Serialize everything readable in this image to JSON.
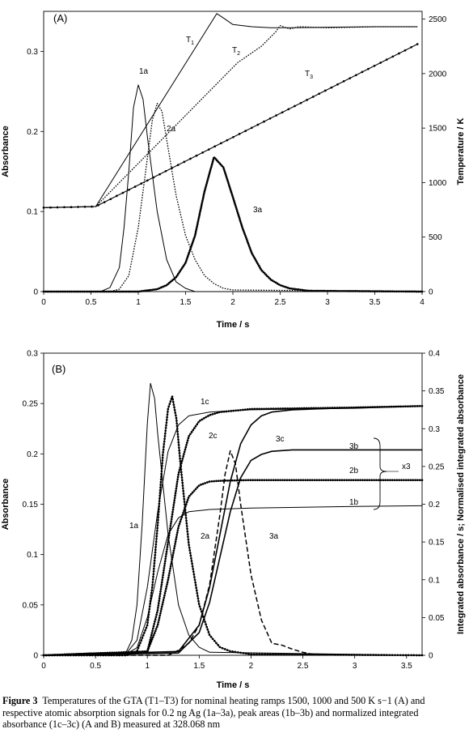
{
  "chart_data": [
    {
      "type": "line",
      "panel_label": "(A)",
      "xlabel": "Time / s",
      "ylabel_left": "Absorbance",
      "ylabel_right": "Temperature / K",
      "xlim": [
        0,
        4
      ],
      "ylim_left": [
        0,
        0.35
      ],
      "ylim_right": [
        0,
        2571
      ],
      "x_ticks": [
        0,
        0.5,
        1,
        1.5,
        2,
        2.5,
        3,
        3.5,
        4
      ],
      "x_tick_labels": [
        "0",
        "0.5",
        "1",
        "1.5",
        "2",
        "2.5",
        "3",
        "3.5",
        "4"
      ],
      "y_ticks_left": [
        0,
        0.1,
        0.2,
        0.3
      ],
      "y_tick_labels_left": [
        "0",
        "0.1",
        "0.2",
        "0.3"
      ],
      "y_ticks_right": [
        0,
        500,
        1000,
        1500,
        2000,
        2500
      ],
      "y_tick_labels_right": [
        "0",
        "500",
        "1000",
        "1500",
        "2000",
        "2500"
      ],
      "series": [
        {
          "label": "T1",
          "axis": "right",
          "style": "solid",
          "x": [
            0,
            0.55,
            1.83,
            1.9,
            2.0,
            2.2,
            2.4,
            2.6,
            3.0,
            3.5,
            3.95
          ],
          "y": [
            770,
            780,
            2550,
            2510,
            2450,
            2430,
            2420,
            2420,
            2425,
            2430,
            2430
          ]
        },
        {
          "label": "T2",
          "axis": "right",
          "style": "dotted",
          "x": [
            0,
            0.55,
            2.05,
            2.3,
            2.45,
            2.5,
            2.6,
            2.7,
            3.0,
            3.5,
            3.95
          ],
          "y": [
            770,
            780,
            2100,
            2250,
            2380,
            2440,
            2410,
            2430,
            2420,
            2430,
            2430
          ]
        },
        {
          "label": "T3",
          "axis": "right",
          "style": "markers",
          "x": [
            0,
            0.55,
            3.95
          ],
          "y": [
            770,
            780,
            2270
          ]
        },
        {
          "label": "1a",
          "axis": "left",
          "style": "solid",
          "x": [
            0,
            0.6,
            0.7,
            0.8,
            0.85,
            0.9,
            0.95,
            1.0,
            1.05,
            1.1,
            1.2,
            1.3,
            1.4,
            1.5,
            1.6,
            4.0
          ],
          "y": [
            0,
            0,
            0.005,
            0.03,
            0.08,
            0.15,
            0.23,
            0.258,
            0.24,
            0.19,
            0.1,
            0.04,
            0.012,
            0.004,
            0,
            0
          ]
        },
        {
          "label": "2a",
          "axis": "left",
          "style": "dotted",
          "x": [
            0,
            0.7,
            0.8,
            0.9,
            1.0,
            1.1,
            1.15,
            1.2,
            1.25,
            1.3,
            1.4,
            1.5,
            1.6,
            1.7,
            1.8,
            1.9,
            2.0,
            4.0
          ],
          "y": [
            0,
            0,
            0.003,
            0.02,
            0.08,
            0.17,
            0.215,
            0.235,
            0.225,
            0.19,
            0.12,
            0.07,
            0.04,
            0.02,
            0.01,
            0.004,
            0.002,
            0
          ]
        },
        {
          "label": "3a",
          "axis": "left",
          "style": "markers",
          "x": [
            0,
            1.0,
            1.2,
            1.3,
            1.4,
            1.5,
            1.6,
            1.7,
            1.8,
            1.9,
            2.0,
            2.1,
            2.2,
            2.3,
            2.4,
            2.5,
            2.6,
            2.8,
            4.0
          ],
          "y": [
            0,
            0,
            0.003,
            0.008,
            0.018,
            0.036,
            0.07,
            0.125,
            0.168,
            0.155,
            0.118,
            0.08,
            0.048,
            0.027,
            0.015,
            0.008,
            0.004,
            0.001,
            0
          ]
        }
      ],
      "annotations": [
        "T1",
        "T2",
        "T3",
        "1a",
        "2a",
        "3a"
      ]
    },
    {
      "type": "line",
      "panel_label": "(B)",
      "xlabel": "Time / s",
      "ylabel_left": "Absorbance",
      "ylabel_right": "Integrated absorbance / s; Normalised integrated absorbance",
      "xlim": [
        0,
        3.65
      ],
      "ylim_left": [
        0,
        0.3
      ],
      "ylim_right": [
        0,
        0.4
      ],
      "x_ticks": [
        0,
        0.5,
        1,
        1.5,
        2,
        2.5,
        3,
        3.5
      ],
      "x_tick_labels": [
        "0",
        "0.5",
        "1",
        "1.5",
        "2",
        "2.5",
        "3",
        "3.5"
      ],
      "y_ticks_left": [
        0,
        0.05,
        0.1,
        0.15,
        0.2,
        0.25,
        0.3
      ],
      "y_tick_labels_left": [
        "0",
        "0.05",
        "0.1",
        "0.15",
        "0.2",
        "0.25",
        "0.3"
      ],
      "y_ticks_right": [
        0,
        0.05,
        0.1,
        0.15,
        0.2,
        0.25,
        0.3,
        0.35,
        0.4
      ],
      "y_tick_labels_right": [
        "0",
        "0.05",
        "0.1",
        "0.15",
        "0.2",
        "0.25",
        "0.3",
        "0.35",
        "0.4"
      ],
      "series": [
        {
          "label": "1a",
          "axis": "left",
          "style": "solid",
          "x": [
            0,
            0.7,
            0.8,
            0.85,
            0.9,
            0.95,
            1.0,
            1.03,
            1.07,
            1.1,
            1.2,
            1.3,
            1.4,
            1.5,
            1.6,
            3.65
          ],
          "y": [
            0,
            0,
            0.004,
            0.015,
            0.05,
            0.13,
            0.23,
            0.27,
            0.255,
            0.22,
            0.12,
            0.05,
            0.02,
            0.008,
            0.003,
            0
          ]
        },
        {
          "label": "2a",
          "axis": "left",
          "style": "markers",
          "x": [
            0,
            0.8,
            0.9,
            1.0,
            1.05,
            1.1,
            1.15,
            1.2,
            1.24,
            1.28,
            1.32,
            1.4,
            1.5,
            1.6,
            1.7,
            1.8,
            2.0,
            3.65
          ],
          "y": [
            0,
            0,
            0.004,
            0.03,
            0.07,
            0.13,
            0.2,
            0.245,
            0.257,
            0.235,
            0.19,
            0.11,
            0.05,
            0.02,
            0.008,
            0.004,
            0.001,
            0
          ]
        },
        {
          "label": "3a",
          "axis": "left",
          "style": "dashed",
          "x": [
            0,
            1.2,
            1.3,
            1.4,
            1.5,
            1.6,
            1.7,
            1.75,
            1.8,
            1.85,
            1.9,
            2.0,
            2.1,
            2.2,
            2.3,
            2.4,
            2.5,
            2.6,
            3.65
          ],
          "y": [
            0,
            0,
            0.005,
            0.012,
            0.03,
            0.07,
            0.14,
            0.18,
            0.203,
            0.19,
            0.15,
            0.08,
            0.035,
            0.012,
            0.01,
            0.006,
            0.003,
            0.001,
            0
          ]
        },
        {
          "label": "1b",
          "axis": "right",
          "style": "solid",
          "x": [
            0,
            0.8,
            0.9,
            1.0,
            1.1,
            1.2,
            1.3,
            1.4,
            1.6,
            2.0,
            3.0,
            3.65
          ],
          "y": [
            0,
            0.002,
            0.01,
            0.05,
            0.11,
            0.16,
            0.182,
            0.19,
            0.193,
            0.195,
            0.197,
            0.198
          ]
        },
        {
          "label": "2b",
          "axis": "right",
          "style": "markers",
          "x": [
            0,
            1.0,
            1.1,
            1.2,
            1.3,
            1.4,
            1.5,
            1.6,
            1.7,
            2.0,
            3.65
          ],
          "y": [
            0,
            0.005,
            0.04,
            0.1,
            0.17,
            0.21,
            0.225,
            0.23,
            0.231,
            0.232,
            0.232
          ]
        },
        {
          "label": "3b",
          "axis": "right",
          "style": "solid-heavy",
          "x": [
            0,
            1.3,
            1.5,
            1.6,
            1.7,
            1.8,
            1.9,
            2.0,
            2.1,
            2.2,
            2.4,
            3.65
          ],
          "y": [
            0,
            0.003,
            0.03,
            0.07,
            0.13,
            0.19,
            0.235,
            0.258,
            0.266,
            0.27,
            0.272,
            0.272
          ]
        },
        {
          "label": "1c",
          "axis": "right",
          "style": "solid",
          "x": [
            0,
            0.8,
            0.9,
            1.0,
            1.1,
            1.2,
            1.3,
            1.4,
            1.6,
            2.0,
            3.0,
            3.65
          ],
          "y": [
            0,
            0.003,
            0.02,
            0.09,
            0.19,
            0.27,
            0.305,
            0.317,
            0.322,
            0.325,
            0.327,
            0.33
          ]
        },
        {
          "label": "2c",
          "axis": "right",
          "style": "markers",
          "x": [
            0,
            1.0,
            1.1,
            1.2,
            1.3,
            1.4,
            1.5,
            1.6,
            1.7,
            2.0,
            3.0,
            3.65
          ],
          "y": [
            0,
            0.005,
            0.06,
            0.15,
            0.24,
            0.29,
            0.31,
            0.318,
            0.322,
            0.326,
            0.328,
            0.33
          ]
        },
        {
          "label": "3c",
          "axis": "right",
          "style": "solid-heavy",
          "x": [
            0,
            1.3,
            1.5,
            1.6,
            1.7,
            1.8,
            1.9,
            2.0,
            2.1,
            2.2,
            2.4,
            3.0,
            3.65
          ],
          "y": [
            0,
            0.005,
            0.04,
            0.09,
            0.16,
            0.23,
            0.28,
            0.305,
            0.317,
            0.322,
            0.325,
            0.328,
            0.33
          ]
        }
      ],
      "annotations": [
        "1c",
        "2c",
        "3c",
        "3b",
        "2b",
        "1b",
        "1a",
        "2a",
        "3a",
        "x3"
      ]
    }
  ],
  "caption": {
    "prefix": "Figure 3",
    "text": "Temperatures of the GTA (T1–T3) for nominal heating ramps 1500, 1000 and 500 K s−1 (A) and respective atomic absorption signals for 0.2 ng Ag (1a–3a), peak areas (1b–3b) and normalized integrated absorbance (1c–3c) (A and B) measured at 328.068 nm"
  }
}
